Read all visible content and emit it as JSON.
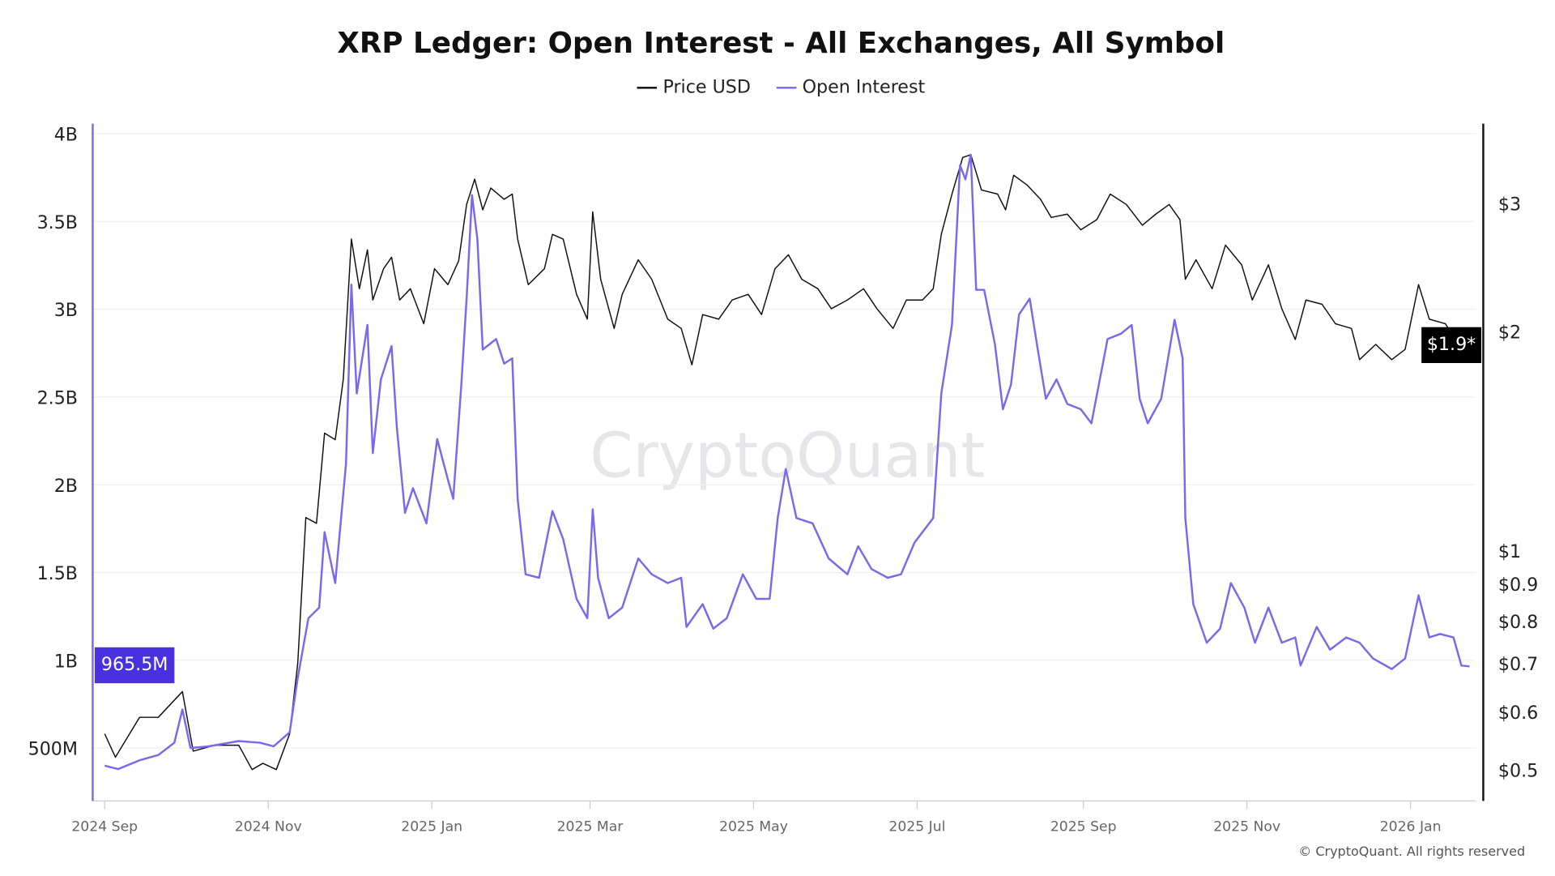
{
  "chart_data": {
    "type": "line",
    "title": "XRP Ledger: Open Interest - All Exchanges, All Symbol",
    "legend": {
      "placement": "top-center",
      "entries": [
        "Price USD",
        "Open Interest"
      ]
    },
    "grid": true,
    "x_ticks": [
      {
        "label": "2024 Sep",
        "date": "2024-09-01"
      },
      {
        "label": "2024 Nov",
        "date": "2024-11-01"
      },
      {
        "label": "2025 Jan",
        "date": "2025-01-01"
      },
      {
        "label": "2025 Mar",
        "date": "2025-03-01"
      },
      {
        "label": "2025 May",
        "date": "2025-05-01"
      },
      {
        "label": "2025 Jul",
        "date": "2025-07-01"
      },
      {
        "label": "2025 Sep",
        "date": "2025-09-01"
      },
      {
        "label": "2025 Nov",
        "date": "2025-11-01"
      },
      {
        "label": "2026 Jan",
        "date": "2026-01-01"
      }
    ],
    "y_left": {
      "label": "",
      "scale": "linear",
      "unit": "USD",
      "range": [
        0.3,
        4.0
      ],
      "ticks": [
        {
          "label": "500M",
          "value": 0.5
        },
        {
          "label": "1B",
          "value": 1.0
        },
        {
          "label": "1.5B",
          "value": 1.5
        },
        {
          "label": "2B",
          "value": 2.0
        },
        {
          "label": "2.5B",
          "value": 2.5
        },
        {
          "label": "3B",
          "value": 3.0
        },
        {
          "label": "3.5B",
          "value": 3.5
        },
        {
          "label": "4B",
          "value": 4.0
        }
      ],
      "current_label": "965.5M"
    },
    "y_right": {
      "label": "",
      "scale": "log",
      "range": [
        0.45,
        3.6
      ],
      "ticks": [
        {
          "label": "$3",
          "value": 3
        },
        {
          "label": "$2",
          "value": 2
        },
        {
          "label": "$1",
          "value": 1
        },
        {
          "label": "$0.9",
          "value": 0.9
        },
        {
          "label": "$0.8",
          "value": 0.8
        },
        {
          "label": "$0.7",
          "value": 0.7
        },
        {
          "label": "$0.6",
          "value": 0.6
        },
        {
          "label": "$0.5",
          "value": 0.5
        }
      ],
      "current_label": "$1.9*"
    },
    "series": [
      {
        "name": "Price USD",
        "axis": "right",
        "color": "#111111",
        "unit": "USD",
        "points": [
          [
            "2024-09-01",
            0.56
          ],
          [
            "2024-09-05",
            0.52
          ],
          [
            "2024-09-14",
            0.59
          ],
          [
            "2024-09-21",
            0.59
          ],
          [
            "2024-09-30",
            0.64
          ],
          [
            "2024-10-04",
            0.53
          ],
          [
            "2024-10-12",
            0.54
          ],
          [
            "2024-10-21",
            0.54
          ],
          [
            "2024-10-26",
            0.5
          ],
          [
            "2024-10-30",
            0.51
          ],
          [
            "2024-11-04",
            0.5
          ],
          [
            "2024-11-09",
            0.56
          ],
          [
            "2024-11-12",
            0.7
          ],
          [
            "2024-11-15",
            1.11
          ],
          [
            "2024-11-19",
            1.09
          ],
          [
            "2024-11-22",
            1.45
          ],
          [
            "2024-11-26",
            1.42
          ],
          [
            "2024-11-29",
            1.72
          ],
          [
            "2024-12-02",
            2.68
          ],
          [
            "2024-12-05",
            2.29
          ],
          [
            "2024-12-08",
            2.59
          ],
          [
            "2024-12-10",
            2.21
          ],
          [
            "2024-12-14",
            2.44
          ],
          [
            "2024-12-17",
            2.53
          ],
          [
            "2024-12-20",
            2.21
          ],
          [
            "2024-12-24",
            2.29
          ],
          [
            "2024-12-29",
            2.05
          ],
          [
            "2025-01-02",
            2.44
          ],
          [
            "2025-01-07",
            2.32
          ],
          [
            "2025-01-11",
            2.5
          ],
          [
            "2025-01-14",
            2.99
          ],
          [
            "2025-01-17",
            3.24
          ],
          [
            "2025-01-20",
            2.94
          ],
          [
            "2025-01-23",
            3.15
          ],
          [
            "2025-01-28",
            3.04
          ],
          [
            "2025-01-31",
            3.09
          ],
          [
            "2025-02-02",
            2.68
          ],
          [
            "2025-02-06",
            2.32
          ],
          [
            "2025-02-12",
            2.44
          ],
          [
            "2025-02-15",
            2.72
          ],
          [
            "2025-02-19",
            2.68
          ],
          [
            "2025-02-24",
            2.25
          ],
          [
            "2025-02-28",
            2.08
          ],
          [
            "2025-03-02",
            2.92
          ],
          [
            "2025-03-05",
            2.36
          ],
          [
            "2025-03-10",
            2.02
          ],
          [
            "2025-03-13",
            2.25
          ],
          [
            "2025-03-19",
            2.51
          ],
          [
            "2025-03-24",
            2.36
          ],
          [
            "2025-03-30",
            2.08
          ],
          [
            "2025-04-04",
            2.02
          ],
          [
            "2025-04-08",
            1.8
          ],
          [
            "2025-04-12",
            2.11
          ],
          [
            "2025-04-18",
            2.08
          ],
          [
            "2025-04-23",
            2.21
          ],
          [
            "2025-04-29",
            2.25
          ],
          [
            "2025-05-04",
            2.11
          ],
          [
            "2025-05-09",
            2.44
          ],
          [
            "2025-05-14",
            2.55
          ],
          [
            "2025-05-19",
            2.36
          ],
          [
            "2025-05-25",
            2.29
          ],
          [
            "2025-05-30",
            2.15
          ],
          [
            "2025-06-05",
            2.21
          ],
          [
            "2025-06-11",
            2.29
          ],
          [
            "2025-06-16",
            2.15
          ],
          [
            "2025-06-22",
            2.02
          ],
          [
            "2025-06-27",
            2.21
          ],
          [
            "2025-07-03",
            2.21
          ],
          [
            "2025-07-07",
            2.29
          ],
          [
            "2025-07-10",
            2.72
          ],
          [
            "2025-07-14",
            3.09
          ],
          [
            "2025-07-18",
            3.47
          ],
          [
            "2025-07-21",
            3.5
          ],
          [
            "2025-07-25",
            3.13
          ],
          [
            "2025-07-31",
            3.09
          ],
          [
            "2025-08-03",
            2.94
          ],
          [
            "2025-08-06",
            3.28
          ],
          [
            "2025-08-11",
            3.18
          ],
          [
            "2025-08-16",
            3.04
          ],
          [
            "2025-08-20",
            2.87
          ],
          [
            "2025-08-26",
            2.9
          ],
          [
            "2025-08-31",
            2.76
          ],
          [
            "2025-09-06",
            2.85
          ],
          [
            "2025-09-11",
            3.09
          ],
          [
            "2025-09-17",
            2.99
          ],
          [
            "2025-09-23",
            2.8
          ],
          [
            "2025-09-28",
            2.9
          ],
          [
            "2025-10-03",
            2.99
          ],
          [
            "2025-10-07",
            2.85
          ],
          [
            "2025-10-09",
            2.36
          ],
          [
            "2025-10-13",
            2.51
          ],
          [
            "2025-10-19",
            2.29
          ],
          [
            "2025-10-24",
            2.63
          ],
          [
            "2025-10-30",
            2.47
          ],
          [
            "2025-11-03",
            2.21
          ],
          [
            "2025-11-09",
            2.47
          ],
          [
            "2025-11-14",
            2.15
          ],
          [
            "2025-11-19",
            1.95
          ],
          [
            "2025-11-23",
            2.21
          ],
          [
            "2025-11-29",
            2.18
          ],
          [
            "2025-12-04",
            2.05
          ],
          [
            "2025-12-10",
            2.02
          ],
          [
            "2025-12-13",
            1.83
          ],
          [
            "2025-12-19",
            1.92
          ],
          [
            "2025-12-25",
            1.83
          ],
          [
            "2025-12-30",
            1.89
          ],
          [
            "2026-01-04",
            2.32
          ],
          [
            "2026-01-08",
            2.08
          ],
          [
            "2026-01-14",
            2.05
          ],
          [
            "2026-01-20",
            1.89
          ],
          [
            "2026-01-23",
            1.9
          ]
        ]
      },
      {
        "name": "Open Interest",
        "axis": "left",
        "color": "#7b68ee",
        "unit": "USD (billions)",
        "points": [
          [
            "2024-09-01",
            0.4
          ],
          [
            "2024-09-06",
            0.38
          ],
          [
            "2024-09-14",
            0.43
          ],
          [
            "2024-09-21",
            0.46
          ],
          [
            "2024-09-27",
            0.53
          ],
          [
            "2024-09-30",
            0.72
          ],
          [
            "2024-10-03",
            0.5
          ],
          [
            "2024-10-10",
            0.51
          ],
          [
            "2024-10-21",
            0.54
          ],
          [
            "2024-10-29",
            0.53
          ],
          [
            "2024-11-03",
            0.51
          ],
          [
            "2024-11-09",
            0.59
          ],
          [
            "2024-11-12",
            0.9
          ],
          [
            "2024-11-16",
            1.24
          ],
          [
            "2024-11-20",
            1.3
          ],
          [
            "2024-11-22",
            1.73
          ],
          [
            "2024-11-26",
            1.44
          ],
          [
            "2024-11-30",
            2.12
          ],
          [
            "2024-12-02",
            3.14
          ],
          [
            "2024-12-04",
            2.52
          ],
          [
            "2024-12-08",
            2.91
          ],
          [
            "2024-12-10",
            2.18
          ],
          [
            "2024-12-13",
            2.6
          ],
          [
            "2024-12-17",
            2.79
          ],
          [
            "2024-12-19",
            2.32
          ],
          [
            "2024-12-22",
            1.84
          ],
          [
            "2024-12-25",
            1.98
          ],
          [
            "2024-12-30",
            1.78
          ],
          [
            "2025-01-03",
            2.26
          ],
          [
            "2025-01-07",
            2.03
          ],
          [
            "2025-01-09",
            1.92
          ],
          [
            "2025-01-12",
            2.57
          ],
          [
            "2025-01-14",
            3.06
          ],
          [
            "2025-01-16",
            3.65
          ],
          [
            "2025-01-18",
            3.4
          ],
          [
            "2025-01-20",
            2.77
          ],
          [
            "2025-01-25",
            2.83
          ],
          [
            "2025-01-28",
            2.69
          ],
          [
            "2025-01-31",
            2.72
          ],
          [
            "2025-02-02",
            1.92
          ],
          [
            "2025-02-05",
            1.49
          ],
          [
            "2025-02-10",
            1.47
          ],
          [
            "2025-02-15",
            1.85
          ],
          [
            "2025-02-19",
            1.69
          ],
          [
            "2025-02-24",
            1.35
          ],
          [
            "2025-02-28",
            1.24
          ],
          [
            "2025-03-02",
            1.86
          ],
          [
            "2025-03-04",
            1.47
          ],
          [
            "2025-03-08",
            1.24
          ],
          [
            "2025-03-13",
            1.3
          ],
          [
            "2025-03-19",
            1.58
          ],
          [
            "2025-03-24",
            1.49
          ],
          [
            "2025-03-30",
            1.44
          ],
          [
            "2025-04-04",
            1.47
          ],
          [
            "2025-04-06",
            1.19
          ],
          [
            "2025-04-12",
            1.32
          ],
          [
            "2025-04-16",
            1.18
          ],
          [
            "2025-04-21",
            1.24
          ],
          [
            "2025-04-27",
            1.49
          ],
          [
            "2025-05-02",
            1.35
          ],
          [
            "2025-05-07",
            1.35
          ],
          [
            "2025-05-10",
            1.81
          ],
          [
            "2025-05-13",
            2.09
          ],
          [
            "2025-05-17",
            1.81
          ],
          [
            "2025-05-23",
            1.78
          ],
          [
            "2025-05-29",
            1.58
          ],
          [
            "2025-06-05",
            1.49
          ],
          [
            "2025-06-09",
            1.65
          ],
          [
            "2025-06-14",
            1.52
          ],
          [
            "2025-06-20",
            1.47
          ],
          [
            "2025-06-25",
            1.49
          ],
          [
            "2025-06-30",
            1.67
          ],
          [
            "2025-07-07",
            1.81
          ],
          [
            "2025-07-10",
            2.52
          ],
          [
            "2025-07-14",
            2.91
          ],
          [
            "2025-07-17",
            3.82
          ],
          [
            "2025-07-19",
            3.74
          ],
          [
            "2025-07-21",
            3.88
          ],
          [
            "2025-07-23",
            3.11
          ],
          [
            "2025-07-26",
            3.11
          ],
          [
            "2025-07-30",
            2.8
          ],
          [
            "2025-08-02",
            2.43
          ],
          [
            "2025-08-05",
            2.57
          ],
          [
            "2025-08-08",
            2.97
          ],
          [
            "2025-08-12",
            3.06
          ],
          [
            "2025-08-15",
            2.77
          ],
          [
            "2025-08-18",
            2.49
          ],
          [
            "2025-08-22",
            2.6
          ],
          [
            "2025-08-26",
            2.46
          ],
          [
            "2025-08-31",
            2.43
          ],
          [
            "2025-09-04",
            2.35
          ],
          [
            "2025-09-10",
            2.83
          ],
          [
            "2025-09-15",
            2.86
          ],
          [
            "2025-09-19",
            2.91
          ],
          [
            "2025-09-22",
            2.49
          ],
          [
            "2025-09-25",
            2.35
          ],
          [
            "2025-09-30",
            2.49
          ],
          [
            "2025-10-05",
            2.94
          ],
          [
            "2025-10-08",
            2.72
          ],
          [
            "2025-10-09",
            1.81
          ],
          [
            "2025-10-12",
            1.32
          ],
          [
            "2025-10-17",
            1.1
          ],
          [
            "2025-10-22",
            1.18
          ],
          [
            "2025-10-26",
            1.44
          ],
          [
            "2025-10-31",
            1.3
          ],
          [
            "2025-11-04",
            1.1
          ],
          [
            "2025-11-09",
            1.3
          ],
          [
            "2025-11-14",
            1.1
          ],
          [
            "2025-11-19",
            1.13
          ],
          [
            "2025-11-21",
            0.97
          ],
          [
            "2025-11-27",
            1.19
          ],
          [
            "2025-12-02",
            1.06
          ],
          [
            "2025-12-08",
            1.13
          ],
          [
            "2025-12-13",
            1.1
          ],
          [
            "2025-12-18",
            1.01
          ],
          [
            "2025-12-25",
            0.95
          ],
          [
            "2025-12-30",
            1.01
          ],
          [
            "2026-01-04",
            1.37
          ],
          [
            "2026-01-08",
            1.13
          ],
          [
            "2026-01-12",
            1.15
          ],
          [
            "2026-01-17",
            1.13
          ],
          [
            "2026-01-20",
            0.97
          ],
          [
            "2026-01-23",
            0.9655
          ]
        ]
      }
    ]
  },
  "watermark": "CryptoQuant",
  "copyright": "© CryptoQuant. All rights reserved"
}
